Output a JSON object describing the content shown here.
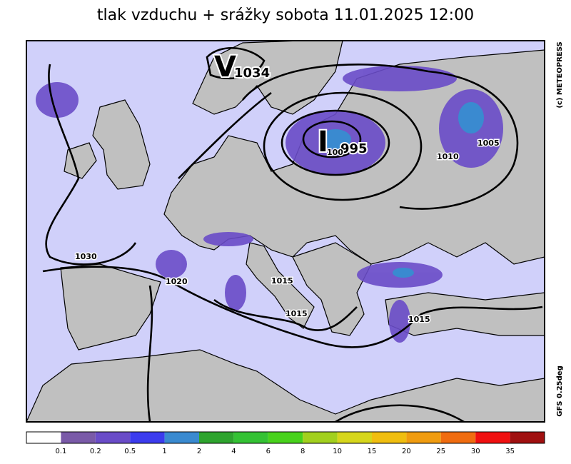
{
  "title": "tlak vzduchu + srážky  sobota 11.01.2025 12:00",
  "credits": {
    "source": "(c) METEOPRESS",
    "model": "GFS  0.25deg"
  },
  "pressure_centers": [
    {
      "letter": "V",
      "value": "1034"
    },
    {
      "letter": "I",
      "value": "995"
    }
  ],
  "isobar_labels": [
    "1030",
    "1020",
    "1015",
    "1015",
    "1015",
    "1010",
    "1005",
    "100"
  ],
  "legend": {
    "colors": [
      "#ffffff",
      "#7a5aa8",
      "#6a4cc8",
      "#3c3cee",
      "#3a8ad0",
      "#2ea42e",
      "#34c234",
      "#48d21c",
      "#a2d01e",
      "#d6d61c",
      "#f0be10",
      "#f09c10",
      "#f06c10",
      "#f01010",
      "#a01010"
    ],
    "labels": [
      0.1,
      0.2,
      0.5,
      1,
      2,
      4,
      6,
      8,
      10,
      15,
      20,
      25,
      30,
      35
    ]
  }
}
